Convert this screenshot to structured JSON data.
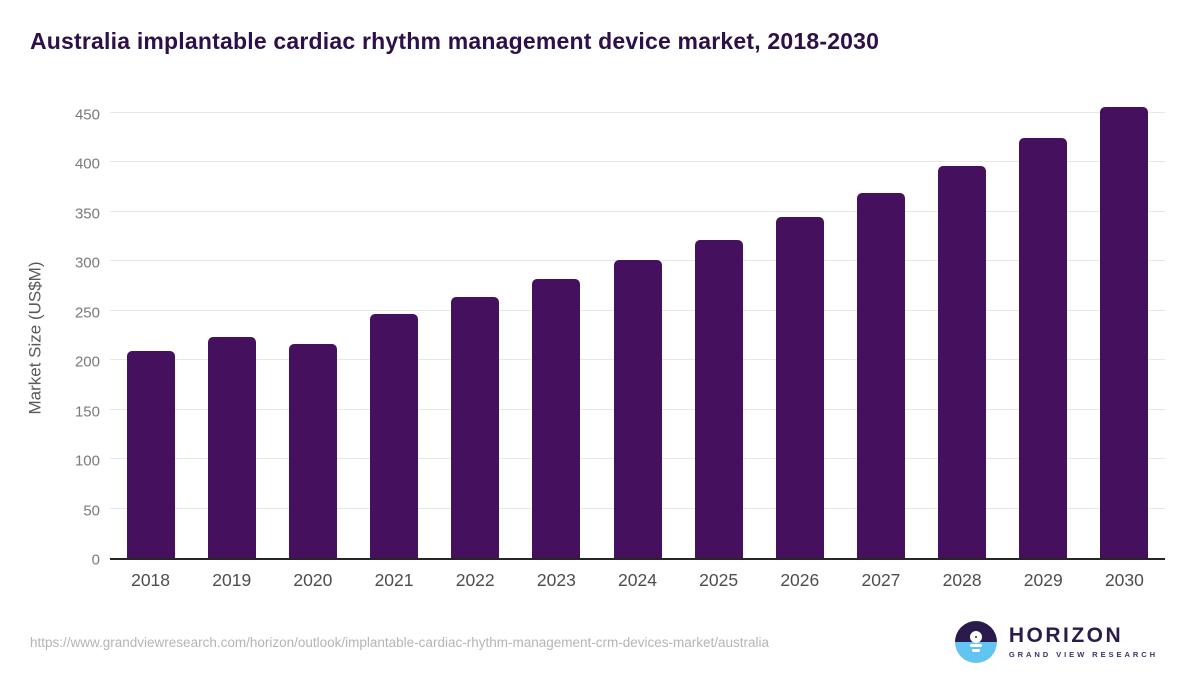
{
  "header": {
    "title": "Australia implantable cardiac rhythm management device market, 2018-2030"
  },
  "chart_data": {
    "type": "bar",
    "title": "Australia implantable cardiac rhythm management device market, 2018-2030",
    "categories": [
      "2018",
      "2019",
      "2020",
      "2021",
      "2022",
      "2023",
      "2024",
      "2025",
      "2026",
      "2027",
      "2028",
      "2029",
      "2030"
    ],
    "values": [
      209,
      224,
      216,
      247,
      264,
      282,
      301,
      322,
      345,
      369,
      396,
      425,
      456
    ],
    "xlabel": "",
    "ylabel": "Market Size (US$M)",
    "ylim": [
      0,
      450
    ],
    "yticks": [
      0,
      50,
      100,
      150,
      200,
      250,
      300,
      350,
      400,
      450
    ],
    "grid": true,
    "legend_position": "none",
    "bar_color": "#45115f"
  },
  "colors": {
    "title_text": "#2e1048",
    "bar": "#45115f",
    "gridline": "#e8e8e8",
    "axis_line": "#262626",
    "y_tick_text": "#7a7a7a",
    "x_tick_text": "#4d4d4d",
    "url_text": "#b5b5b5",
    "logo_purple": "#2b1b4d",
    "logo_blue": "#62c4f0"
  },
  "footer": {
    "url": "https://www.grandviewresearch.com/horizon/outlook/implantable-cardiac-rhythm-management-crm-devices-market/australia",
    "logo": {
      "name": "HORIZON",
      "subtitle": "GRAND VIEW RESEARCH"
    }
  }
}
